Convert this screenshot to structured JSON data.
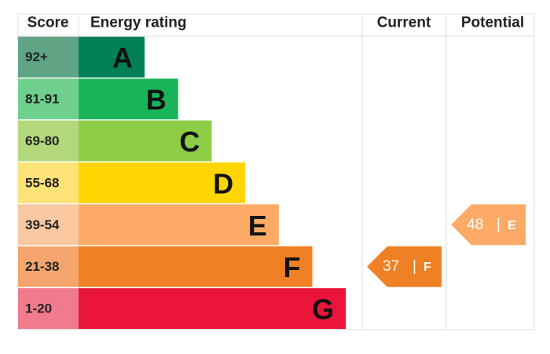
{
  "header": {
    "score": "Score",
    "energy_rating": "Energy rating",
    "current": "Current",
    "potential": "Potential"
  },
  "rows": [
    {
      "score": "92+",
      "band": "A"
    },
    {
      "score": "81-91",
      "band": "B"
    },
    {
      "score": "69-80",
      "band": "C"
    },
    {
      "score": "55-68",
      "band": "D"
    },
    {
      "score": "39-54",
      "band": "E"
    },
    {
      "score": "21-38",
      "band": "F"
    },
    {
      "score": "1-20",
      "band": "G"
    }
  ],
  "separator": "|",
  "current": {
    "value": 37,
    "band": "F"
  },
  "potential": {
    "value": 48,
    "band": "E"
  }
}
